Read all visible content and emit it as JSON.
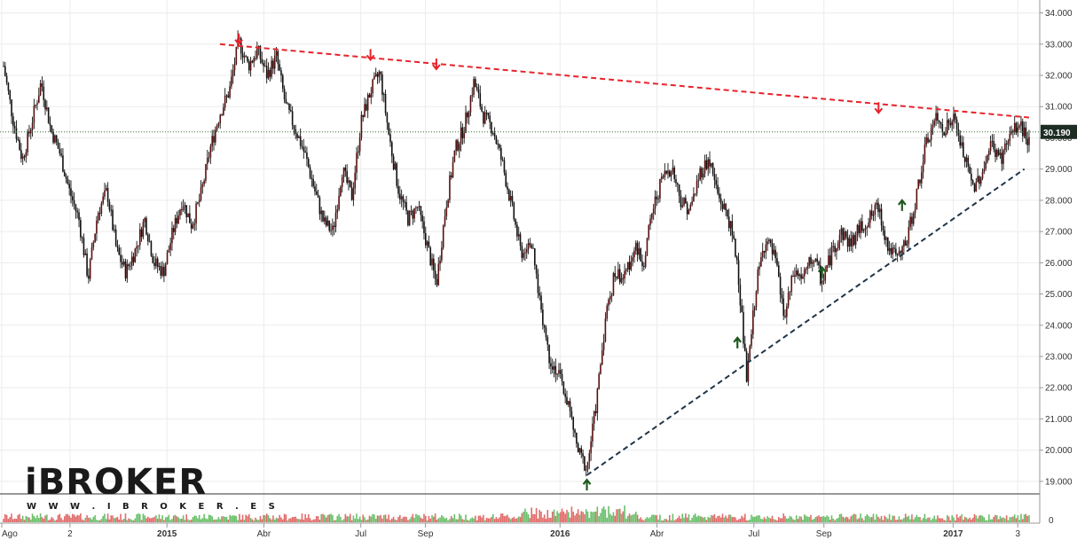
{
  "chart_data": {
    "type": "candlestick",
    "y_axis": {
      "ticks": [
        "34.000",
        "33.000",
        "32.000",
        "31.000",
        "30.000",
        "29.000",
        "28.000",
        "27.000",
        "26.000",
        "25.000",
        "24.000",
        "23.000",
        "22.000",
        "21.000",
        "20.000",
        "19.000"
      ],
      "ylim": [
        18600,
        34300
      ]
    },
    "x_axis": {
      "ticks": [
        "Ago",
        "2",
        "2015",
        "Abr",
        "Jul",
        "Sep",
        "2016",
        "Abr",
        "Jul",
        "Sep",
        "2017",
        "3"
      ],
      "bold_ticks": [
        "2015",
        "2016",
        "2017"
      ]
    },
    "last_price": {
      "label": "30.190",
      "value": 30190
    },
    "price_path": [
      [
        0,
        32300
      ],
      [
        0.02,
        30600
      ],
      [
        0.04,
        29300
      ],
      [
        0.06,
        30500
      ],
      [
        0.08,
        31800
      ],
      [
        0.1,
        30300
      ],
      [
        0.12,
        29500
      ],
      [
        0.14,
        28300
      ],
      [
        0.16,
        27400
      ],
      [
        0.18,
        25500
      ],
      [
        0.2,
        27600
      ],
      [
        0.22,
        28300
      ],
      [
        0.24,
        26400
      ],
      [
        0.26,
        25700
      ],
      [
        0.28,
        26400
      ],
      [
        0.3,
        27400
      ],
      [
        0.32,
        26000
      ],
      [
        0.34,
        25700
      ],
      [
        0.36,
        27000
      ],
      [
        0.38,
        28000
      ],
      [
        0.4,
        27200
      ],
      [
        0.42,
        28200
      ],
      [
        0.44,
        29700
      ],
      [
        0.46,
        30800
      ],
      [
        0.48,
        31500
      ],
      [
        0.5,
        33100
      ],
      [
        0.52,
        32300
      ],
      [
        0.54,
        32800
      ],
      [
        0.56,
        32000
      ],
      [
        0.58,
        32600
      ],
      [
        0.6,
        31000
      ],
      [
        0.62,
        30300
      ],
      [
        0.64,
        29500
      ],
      [
        0.66,
        28400
      ],
      [
        0.68,
        27300
      ],
      [
        0.7,
        27000
      ],
      [
        0.72,
        29000
      ],
      [
        0.74,
        28100
      ],
      [
        0.76,
        30500
      ],
      [
        0.78,
        31500
      ],
      [
        0.8,
        32100
      ],
      [
        0.82,
        30000
      ],
      [
        0.84,
        28300
      ],
      [
        0.86,
        27400
      ],
      [
        0.88,
        27800
      ],
      [
        0.9,
        26600
      ],
      [
        0.92,
        25300
      ],
      [
        0.94,
        27800
      ],
      [
        0.96,
        29600
      ],
      [
        0.98,
        30400
      ],
      [
        1.0,
        31800
      ],
      [
        1.02,
        30700
      ],
      [
        1.04,
        30300
      ],
      [
        1.06,
        29200
      ],
      [
        1.08,
        27800
      ],
      [
        1.1,
        26300
      ],
      [
        1.12,
        26800
      ],
      [
        1.14,
        24800
      ],
      [
        1.16,
        23000
      ],
      [
        1.18,
        22400
      ],
      [
        1.2,
        21500
      ],
      [
        1.22,
        20000
      ],
      [
        1.24,
        19400
      ],
      [
        1.26,
        21500
      ],
      [
        1.28,
        24300
      ],
      [
        1.3,
        25700
      ],
      [
        1.32,
        25500
      ],
      [
        1.34,
        26500
      ],
      [
        1.36,
        26000
      ],
      [
        1.38,
        27700
      ],
      [
        1.4,
        28700
      ],
      [
        1.42,
        29100
      ],
      [
        1.44,
        28000
      ],
      [
        1.46,
        27700
      ],
      [
        1.48,
        28900
      ],
      [
        1.5,
        29300
      ],
      [
        1.52,
        28100
      ],
      [
        1.54,
        27500
      ],
      [
        1.56,
        26000
      ],
      [
        1.58,
        22200
      ],
      [
        1.6,
        25300
      ],
      [
        1.62,
        26800
      ],
      [
        1.64,
        26100
      ],
      [
        1.66,
        24200
      ],
      [
        1.68,
        25700
      ],
      [
        1.7,
        25500
      ],
      [
        1.72,
        26200
      ],
      [
        1.74,
        25400
      ],
      [
        1.76,
        26300
      ],
      [
        1.78,
        27000
      ],
      [
        1.8,
        26600
      ],
      [
        1.82,
        27100
      ],
      [
        1.84,
        27400
      ],
      [
        1.86,
        27800
      ],
      [
        1.88,
        26500
      ],
      [
        1.9,
        26100
      ],
      [
        1.92,
        26700
      ],
      [
        1.94,
        28100
      ],
      [
        1.96,
        29700
      ],
      [
        1.98,
        30600
      ],
      [
        2.0,
        30300
      ],
      [
        2.02,
        30600
      ],
      [
        2.04,
        29500
      ],
      [
        2.06,
        28400
      ],
      [
        2.08,
        28900
      ],
      [
        2.1,
        29800
      ],
      [
        2.12,
        29300
      ],
      [
        2.14,
        30100
      ],
      [
        2.16,
        30400
      ],
      [
        2.18,
        29900
      ]
    ],
    "resistance_line": {
      "from": [
        0.46,
        33000
      ],
      "to": [
        2.18,
        30650
      ],
      "color": "#e8232a"
    },
    "support_line": {
      "from": [
        1.24,
        19200
      ],
      "to": [
        2.17,
        29000
      ],
      "color": "#1f3447"
    },
    "down_arrows": [
      [
        0.5,
        33000
      ],
      [
        0.78,
        32500
      ],
      [
        0.92,
        32200
      ],
      [
        1.86,
        30800
      ]
    ],
    "up_arrows": [
      [
        1.24,
        19050
      ],
      [
        1.56,
        23600
      ],
      [
        1.74,
        25850
      ],
      [
        1.91,
        28000
      ]
    ],
    "colors": {
      "up": "#5a1010",
      "down": "#111111",
      "vol_up": "#6abf6a",
      "vol_down": "#e06b6b",
      "last_price_bg": "#1d2d24",
      "price_line": "#2e6e2e"
    }
  },
  "logo": {
    "name": "iBROKER",
    "url": "W W W . I B R O K E R . E S"
  }
}
